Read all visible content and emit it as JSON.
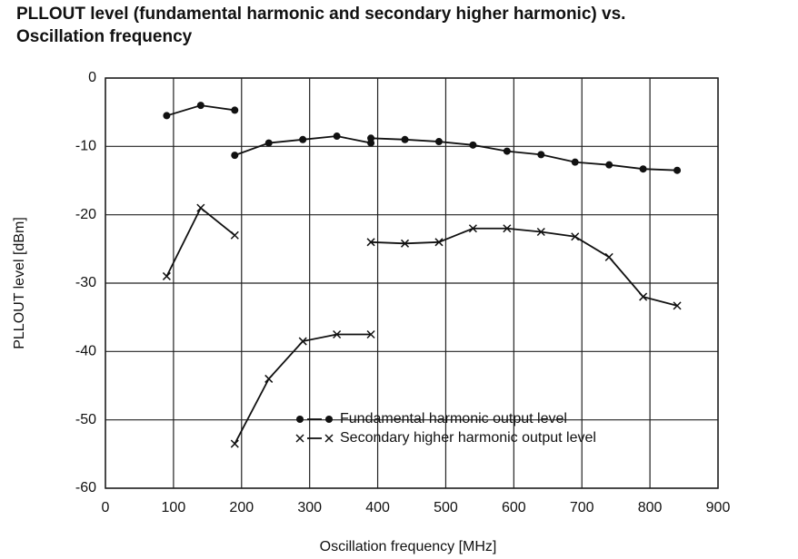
{
  "chart_data": {
    "type": "line",
    "title": [
      "PLLOUT level (fundamental harmonic and secondary higher harmonic) vs.",
      "Oscillation frequency"
    ],
    "x_label": "Oscillation frequency [MHz]",
    "y_label": "PLLOUT level [dBm]",
    "xlim": [
      0,
      900
    ],
    "xticks": [
      0,
      100,
      200,
      300,
      400,
      500,
      600,
      700,
      800,
      900
    ],
    "ylim": [
      -60,
      0
    ],
    "yticks": [
      0,
      -10,
      -20,
      -30,
      -40,
      -50,
      -60
    ],
    "grid": true,
    "legend": "lower right",
    "series": [
      {
        "name": "Fundamental harmonic output level",
        "marker": "circle",
        "color": "#111",
        "x": [
          90,
          140,
          190,
          null,
          190,
          240,
          290,
          340,
          390,
          null,
          390,
          440,
          490,
          540,
          590,
          640,
          690,
          740,
          790,
          840
        ],
        "values": [
          -5.5,
          -4,
          -4.7,
          null,
          -11.3,
          -9.5,
          -9,
          -8.5,
          -9.5,
          null,
          -8.8,
          -9,
          -9.3,
          -9.8,
          -10.7,
          -11.2,
          -12.3,
          -12.7,
          -13.3,
          -13.5
        ]
      },
      {
        "name": "Secondary higher harmonic output level",
        "marker": "x",
        "color": "#111",
        "x": [
          90,
          140,
          190,
          null,
          190,
          240,
          290,
          340,
          390,
          null,
          390,
          440,
          490,
          540,
          590,
          640,
          690,
          740,
          790,
          840
        ],
        "values": [
          -29,
          -19,
          -23,
          null,
          -53.5,
          -44,
          -38.5,
          -37.5,
          -37.5,
          null,
          -24,
          -24.2,
          -24,
          -22,
          -22,
          -22.5,
          -23.2,
          -26.2,
          -32,
          -33.3
        ]
      }
    ]
  }
}
